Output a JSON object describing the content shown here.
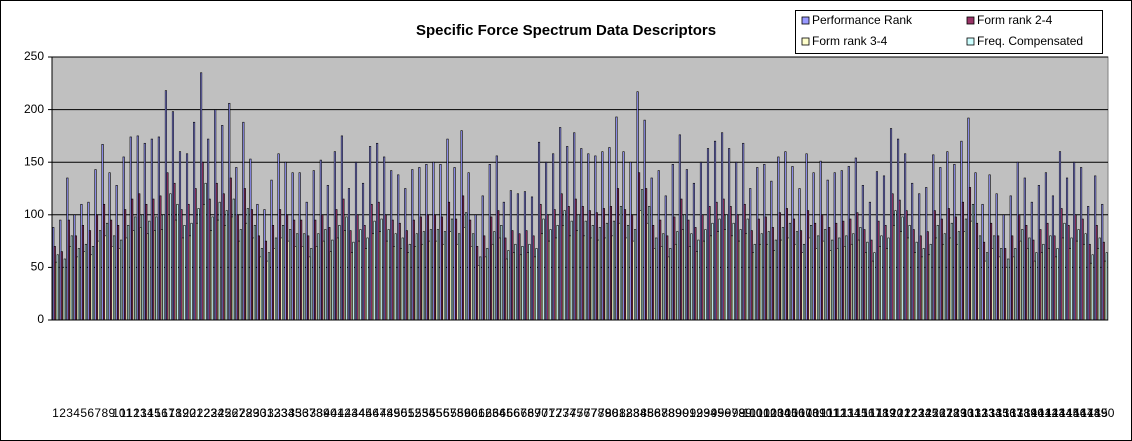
{
  "chart_data": {
    "type": "bar",
    "title": "Specific Force Spectrum Data Descriptors",
    "ylim": [
      0,
      250
    ],
    "yticks": [
      0,
      50,
      100,
      150,
      200,
      250
    ],
    "grid": true,
    "legend": "top-right",
    "categories": [
      1,
      2,
      3,
      4,
      5,
      6,
      7,
      8,
      9,
      10,
      11,
      12,
      13,
      14,
      15,
      16,
      17,
      18,
      19,
      20,
      21,
      22,
      23,
      24,
      25,
      26,
      27,
      28,
      29,
      30,
      31,
      32,
      33,
      34,
      35,
      36,
      37,
      38,
      39,
      40,
      41,
      42,
      43,
      44,
      45,
      46,
      47,
      48,
      49,
      50,
      51,
      52,
      53,
      54,
      55,
      56,
      57,
      58,
      59,
      60,
      61,
      62,
      63,
      64,
      65,
      66,
      67,
      68,
      69,
      70,
      71,
      72,
      73,
      74,
      75,
      76,
      77,
      78,
      79,
      80,
      81,
      82,
      83,
      84,
      85,
      86,
      87,
      88,
      89,
      90,
      91,
      92,
      93,
      94,
      95,
      96,
      97,
      98,
      99,
      100,
      101,
      102,
      103,
      104,
      105,
      106,
      107,
      108,
      109,
      110,
      111,
      112,
      113,
      114,
      115,
      116,
      117,
      118,
      119,
      120,
      121,
      122,
      123,
      124,
      125,
      126,
      127,
      128,
      129,
      130,
      131,
      132,
      133,
      134,
      135,
      136,
      137,
      138,
      139,
      140,
      141,
      142,
      143,
      144,
      145,
      146,
      147,
      148,
      149,
      150
    ],
    "series": [
      {
        "name": "Performance Rank",
        "color": "#9999ff",
        "values": [
          88,
          95,
          135,
          100,
          110,
          112,
          143,
          167,
          140,
          128,
          155,
          174,
          175,
          168,
          172,
          174,
          218,
          198,
          160,
          158,
          188,
          235,
          172,
          200,
          185,
          206,
          145,
          188,
          153,
          110,
          105,
          133,
          158,
          150,
          140,
          140,
          112,
          142,
          152,
          128,
          160,
          175,
          125,
          150,
          130,
          165,
          168,
          155,
          142,
          138,
          125,
          143,
          145,
          148,
          150,
          148,
          172,
          145,
          180,
          140,
          100,
          118,
          148,
          156,
          112,
          123,
          120,
          122,
          117,
          169,
          150,
          158,
          183,
          165,
          178,
          163,
          158,
          156,
          160,
          164,
          193,
          160,
          150,
          217,
          190,
          135,
          142,
          118,
          148,
          176,
          143,
          130,
          150,
          163,
          170,
          178,
          163,
          150,
          168,
          125,
          145,
          148,
          132,
          155,
          160,
          146,
          125,
          158,
          140,
          151,
          133,
          140,
          142,
          146,
          154,
          128,
          112,
          141,
          137,
          182,
          172,
          158,
          130,
          120,
          126,
          157,
          145,
          160,
          148,
          170,
          192,
          140,
          110,
          138,
          120,
          100,
          118,
          150,
          135,
          112,
          128,
          140,
          118,
          160,
          135,
          150,
          145,
          108,
          137,
          110
        ]
      },
      {
        "name": "Form rank 2-4",
        "color": "#993366",
        "values": [
          70,
          65,
          95,
          80,
          90,
          85,
          100,
          110,
          95,
          90,
          105,
          115,
          120,
          110,
          115,
          118,
          140,
          130,
          105,
          110,
          125,
          150,
          115,
          130,
          120,
          135,
          100,
          125,
          105,
          80,
          75,
          90,
          105,
          100,
          95,
          95,
          80,
          95,
          100,
          88,
          105,
          115,
          85,
          100,
          90,
          110,
          112,
          100,
          95,
          92,
          85,
          95,
          98,
          100,
          100,
          98,
          112,
          96,
          118,
          95,
          70,
          80,
          98,
          104,
          78,
          85,
          82,
          85,
          80,
          110,
          100,
          105,
          120,
          108,
          115,
          108,
          104,
          102,
          106,
          108,
          125,
          105,
          100,
          140,
          125,
          90,
          95,
          80,
          98,
          115,
          95,
          88,
          100,
          108,
          112,
          115,
          108,
          100,
          110,
          85,
          96,
          98,
          88,
          102,
          106,
          96,
          85,
          104,
          92,
          100,
          88,
          92,
          94,
          96,
          102,
          86,
          76,
          94,
          90,
          120,
          114,
          104,
          86,
          80,
          84,
          104,
          96,
          106,
          98,
          112,
          126,
          92,
          74,
          92,
          80,
          68,
          80,
          100,
          90,
          76,
          86,
          92,
          80,
          106,
          90,
          100,
          96,
          72,
          90,
          74
        ]
      },
      {
        "name": "Form rank 3-4",
        "color": "#ffffcc",
        "values": [
          55,
          50,
          70,
          60,
          65,
          62,
          75,
          80,
          70,
          68,
          78,
          85,
          88,
          82,
          85,
          86,
          100,
          95,
          78,
          80,
          92,
          110,
          85,
          95,
          90,
          98,
          75,
          92,
          78,
          60,
          56,
          68,
          78,
          75,
          70,
          70,
          60,
          70,
          75,
          65,
          78,
          85,
          64,
          75,
          68,
          82,
          84,
          75,
          70,
          68,
          64,
          70,
          72,
          75,
          75,
          72,
          84,
          72,
          88,
          70,
          52,
          60,
          72,
          78,
          58,
          64,
          62,
          64,
          60,
          82,
          75,
          78,
          90,
          80,
          85,
          80,
          78,
          76,
          78,
          80,
          92,
          78,
          75,
          104,
          92,
          68,
          70,
          60,
          72,
          86,
          70,
          65,
          75,
          80,
          84,
          86,
          80,
          75,
          82,
          64,
          72,
          72,
          66,
          76,
          78,
          72,
          64,
          78,
          68,
          75,
          66,
          68,
          70,
          72,
          76,
          64,
          56,
          70,
          68,
          90,
          84,
          78,
          64,
          60,
          62,
          78,
          72,
          78,
          72,
          84,
          94,
          68,
          56,
          68,
          60,
          50,
          60,
          75,
          68,
          56,
          64,
          68,
          60,
          78,
          68,
          75,
          72,
          54,
          68,
          56
        ]
      },
      {
        "name": "Freq. Compensated",
        "color": "#ccffff",
        "values": [
          62,
          58,
          80,
          68,
          72,
          70,
          85,
          92,
          80,
          76,
          90,
          98,
          100,
          94,
          98,
          100,
          120,
          110,
          90,
          92,
          106,
          130,
          98,
          112,
          104,
          115,
          86,
          106,
          90,
          68,
          64,
          78,
          90,
          86,
          82,
          82,
          68,
          82,
          86,
          76,
          90,
          98,
          74,
          86,
          78,
          94,
          96,
          86,
          82,
          78,
          72,
          82,
          84,
          86,
          86,
          84,
          96,
          82,
          102,
          82,
          60,
          68,
          84,
          90,
          66,
          72,
          70,
          72,
          68,
          96,
          86,
          90,
          104,
          94,
          100,
          94,
          90,
          88,
          92,
          94,
          108,
          90,
          86,
          124,
          108,
          78,
          82,
          68,
          84,
          100,
          82,
          76,
          86,
          92,
          96,
          100,
          92,
          86,
          96,
          72,
          82,
          84,
          76,
          88,
          92,
          84,
          72,
          90,
          80,
          86,
          76,
          78,
          80,
          82,
          88,
          74,
          64,
          80,
          78,
          104,
          98,
          90,
          74,
          68,
          72,
          90,
          82,
          92,
          84,
          96,
          110,
          80,
          64,
          80,
          68,
          58,
          68,
          86,
          78,
          64,
          72,
          80,
          68,
          92,
          78,
          86,
          82,
          62,
          78,
          64
        ]
      }
    ]
  }
}
